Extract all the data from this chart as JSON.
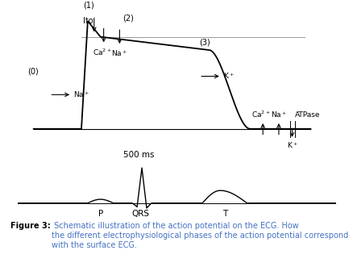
{
  "fig_width": 4.39,
  "fig_height": 3.26,
  "dpi": 100,
  "bg_color": "#ffffff",
  "caption_bold": "Figure 3:",
  "caption_text": " Schematic illustration of the action potential on the ECG. How\nthe different electrophysiological phases of the action potential correspond\nwith the surface ECG.",
  "caption_color": "#4472c4",
  "caption_bold_color": "#000000",
  "time_label": "500 ms",
  "ecg_labels": [
    "P",
    "QRS",
    "T"
  ]
}
